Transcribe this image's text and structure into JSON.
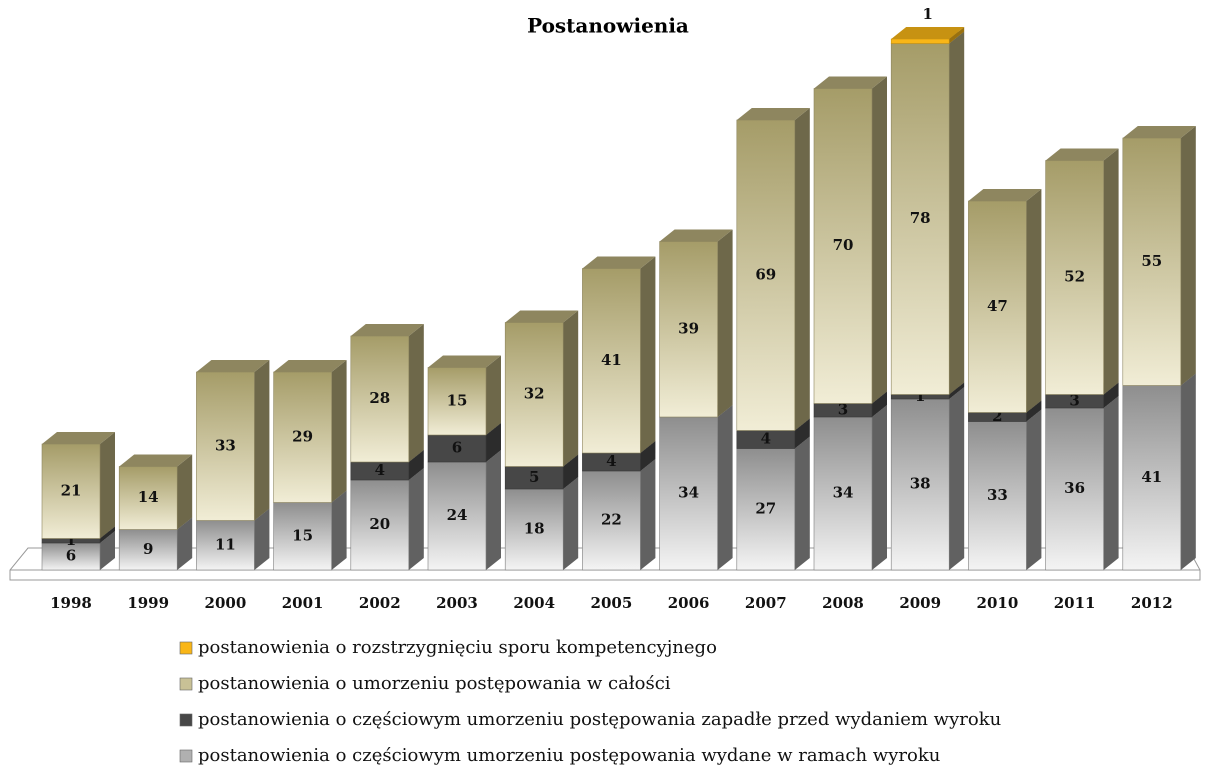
{
  "chart_data": {
    "type": "bar3d_stacked",
    "title": "Postanowienia",
    "categories": [
      "1998",
      "1999",
      "2000",
      "2001",
      "2002",
      "2003",
      "2004",
      "2005",
      "2006",
      "2007",
      "2008",
      "2009",
      "2010",
      "2011",
      "2012"
    ],
    "series": [
      {
        "name": "postanowienia o częściowym umorzeniu postępowania wydane w ramach wyroku",
        "color": "#9c9c9c",
        "values": [
          6,
          9,
          11,
          15,
          20,
          24,
          18,
          22,
          34,
          27,
          34,
          38,
          33,
          36,
          41
        ]
      },
      {
        "name": "postanowienia o częściowym umorzeniu postępowania zapadłe przed wydaniem wyroku",
        "color": "#474747",
        "values": [
          1,
          null,
          null,
          null,
          4,
          6,
          5,
          4,
          null,
          4,
          3,
          1,
          2,
          3,
          null
        ]
      },
      {
        "name": "postanowienia o umorzeniu postępowania w całości",
        "color": "#b1a877",
        "values": [
          21,
          14,
          33,
          29,
          28,
          15,
          32,
          41,
          39,
          69,
          70,
          78,
          47,
          52,
          55
        ]
      },
      {
        "name": "postanowienia o rozstrzygnięciu sporu kompetencyjnego",
        "color": "#f9b617",
        "values": [
          null,
          null,
          null,
          null,
          null,
          null,
          null,
          null,
          null,
          null,
          null,
          1,
          null,
          null,
          null
        ]
      }
    ]
  }
}
